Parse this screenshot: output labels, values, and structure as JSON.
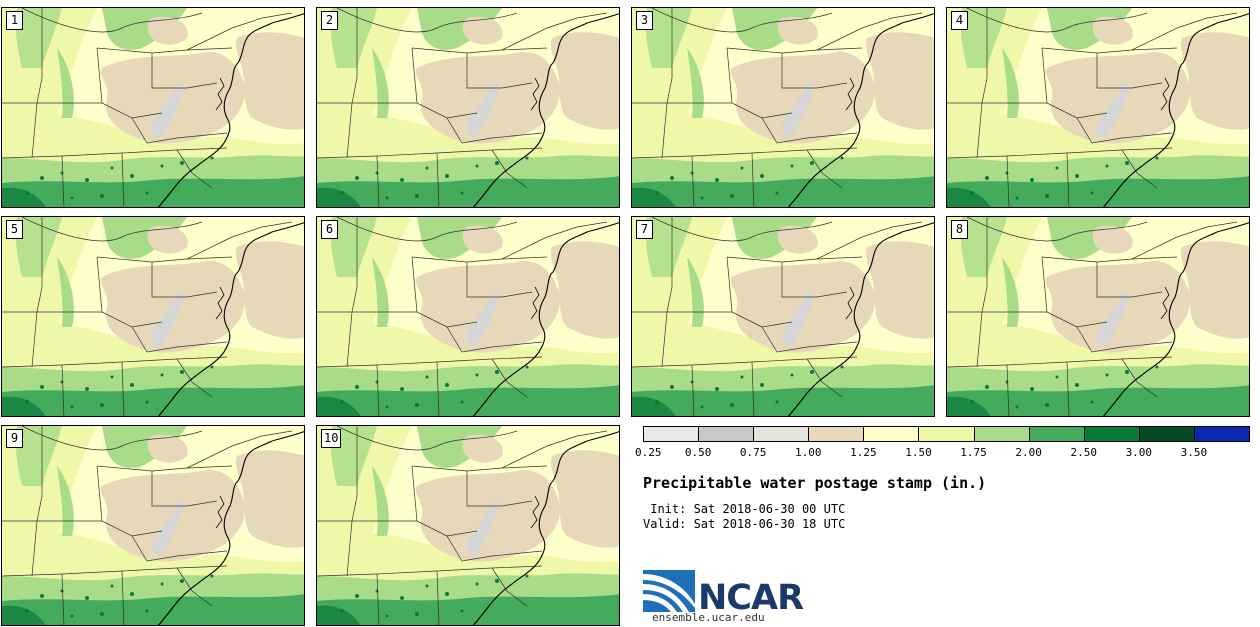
{
  "stamps": [
    {
      "number": "1"
    },
    {
      "number": "2"
    },
    {
      "number": "3"
    },
    {
      "number": "4"
    },
    {
      "number": "5"
    },
    {
      "number": "6"
    },
    {
      "number": "7"
    },
    {
      "number": "8"
    },
    {
      "number": "9"
    },
    {
      "number": "10"
    }
  ],
  "colorbar": {
    "colors": [
      "#e8e8e8",
      "#c8c8c8",
      "#e4e4dc",
      "#e6d8b8",
      "#fffcc8",
      "#eef8a8",
      "#a8dc88",
      "#44aa5c",
      "#0a7a3a",
      "#064a22",
      "#0a28b0"
    ],
    "ticks": [
      "0.25",
      "0.50",
      "0.75",
      "1.00",
      "1.25",
      "1.50",
      "1.75",
      "2.00",
      "2.50",
      "3.00",
      "3.50"
    ]
  },
  "title": "Precipitable water postage stamp (in.)",
  "init": " Init: Sat 2018-06-30 00 UTC",
  "valid": "Valid: Sat 2018-06-30 18 UTC",
  "logo": {
    "text": "NCAR",
    "site": "ensemble.ucar.edu"
  }
}
